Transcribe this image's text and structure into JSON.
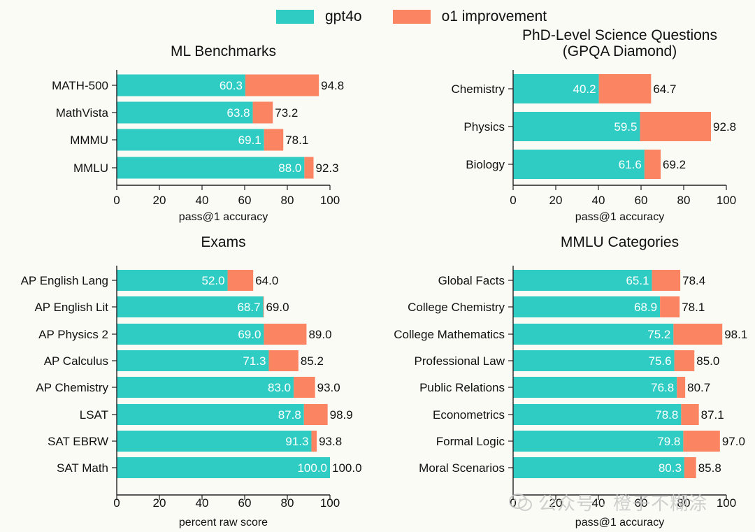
{
  "colors": {
    "base": "#2fccc4",
    "improvement": "#fb8463",
    "text": "#111111",
    "axis": "#222222",
    "background": "#fbfbf6"
  },
  "legend": {
    "items": [
      {
        "label": "gpt4o",
        "color": "#2fccc4"
      },
      {
        "label": "o1 improvement",
        "color": "#fb8463"
      }
    ]
  },
  "watermark": {
    "text": "公众号 · 橙子不糊涂"
  },
  "chart_data": [
    {
      "type": "bar",
      "title": "ML Benchmarks",
      "xlabel": "pass@1 accuracy",
      "xlim": [
        0,
        100
      ],
      "ticks": [
        0,
        20,
        40,
        60,
        80,
        100
      ],
      "categories": [
        "MATH-500",
        "MathVista",
        "MMMU",
        "MMLU"
      ],
      "series": [
        {
          "name": "gpt4o",
          "values": [
            60.3,
            63.8,
            69.1,
            88.0
          ]
        },
        {
          "name": "o1 improvement",
          "values": [
            94.8,
            73.2,
            78.1,
            92.3
          ]
        }
      ]
    },
    {
      "type": "bar",
      "title": "PhD-Level Science Questions",
      "subtitle": "(GPQA Diamond)",
      "xlabel": "pass@1 accuracy",
      "xlim": [
        0,
        100
      ],
      "ticks": [
        0,
        20,
        40,
        60,
        80,
        100
      ],
      "categories": [
        "Chemistry",
        "Physics",
        "Biology"
      ],
      "series": [
        {
          "name": "gpt4o",
          "values": [
            40.2,
            59.5,
            61.6
          ]
        },
        {
          "name": "o1 improvement",
          "values": [
            64.7,
            92.8,
            69.2
          ]
        }
      ]
    },
    {
      "type": "bar",
      "title": "Exams",
      "xlabel": "percent raw score",
      "xlim": [
        0,
        100
      ],
      "ticks": [
        0,
        20,
        40,
        60,
        80,
        100
      ],
      "categories": [
        "AP English Lang",
        "AP English Lit",
        "AP Physics 2",
        "AP Calculus",
        "AP Chemistry",
        "LSAT",
        "SAT EBRW",
        "SAT Math"
      ],
      "series": [
        {
          "name": "gpt4o",
          "values": [
            52.0,
            68.7,
            69.0,
            71.3,
            83.0,
            87.8,
            91.3,
            100.0
          ]
        },
        {
          "name": "o1 improvement",
          "values": [
            64.0,
            69.0,
            89.0,
            85.2,
            93.0,
            98.9,
            93.8,
            100.0
          ]
        }
      ]
    },
    {
      "type": "bar",
      "title": "MMLU Categories",
      "xlabel": "pass@1 accuracy",
      "xlim": [
        0,
        100
      ],
      "ticks": [
        0,
        20,
        40,
        60,
        80,
        100
      ],
      "categories": [
        "Global Facts",
        "College Chemistry",
        "College Mathematics",
        "Professional Law",
        "Public Relations",
        "Econometrics",
        "Formal Logic",
        "Moral Scenarios"
      ],
      "series": [
        {
          "name": "gpt4o",
          "values": [
            65.1,
            68.9,
            75.2,
            75.6,
            76.8,
            78.8,
            79.8,
            80.3
          ]
        },
        {
          "name": "o1 improvement",
          "values": [
            78.4,
            78.1,
            98.1,
            85.0,
            80.7,
            87.1,
            97.0,
            85.8
          ]
        }
      ]
    }
  ]
}
